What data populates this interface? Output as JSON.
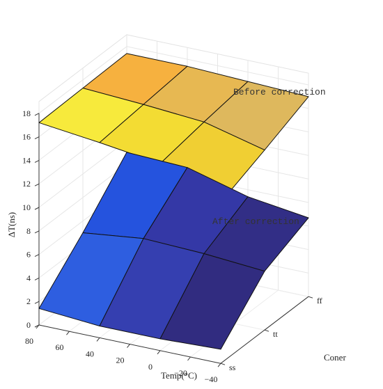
{
  "chart_data": {
    "type": "surface3d",
    "title": "",
    "xlabel": "Temp(°C)",
    "ylabel": "Coner",
    "zlabel": "ΔT(ns)",
    "x_ticks": [
      "80",
      "60",
      "40",
      "20",
      "0",
      "−20",
      "−40"
    ],
    "y_ticks": [
      "ss",
      "tt",
      "ff"
    ],
    "z_ticks": [
      "0",
      "2",
      "4",
      "6",
      "8",
      "10",
      "12",
      "14",
      "16",
      "18"
    ],
    "zlim": [
      0,
      18
    ],
    "grid": true,
    "x": [
      80,
      40,
      0,
      -40
    ],
    "y": [
      "ss",
      "tt",
      "ff"
    ],
    "series": [
      {
        "name": "Before correction",
        "colormap": "yellow-orange",
        "z": [
          [
            17.2,
            17.3,
            17.4
          ],
          [
            16.6,
            17.0,
            17.4
          ],
          [
            15.9,
            16.6,
            17.2
          ],
          [
            13.7,
            15.3,
            17.0
          ]
        ],
        "colors": [
          [
            "#f7ea3c",
            "#f6b13f"
          ],
          [
            "#f3dc33",
            "#e7b852"
          ],
          [
            "#f0cf33",
            "#deb85d"
          ]
        ]
      },
      {
        "name": "After correction",
        "colormap": "blue",
        "z": [
          [
            1.4,
            5.0,
            9.0
          ],
          [
            1.0,
            5.6,
            8.8
          ],
          [
            1.0,
            5.4,
            7.4
          ],
          [
            1.2,
            5.0,
            6.7
          ]
        ],
        "colors": [
          [
            "#2e5ee0",
            "#2553de"
          ],
          [
            "#353fb0",
            "#3438a6"
          ],
          [
            "#312c80",
            "#322e86"
          ]
        ]
      }
    ]
  }
}
